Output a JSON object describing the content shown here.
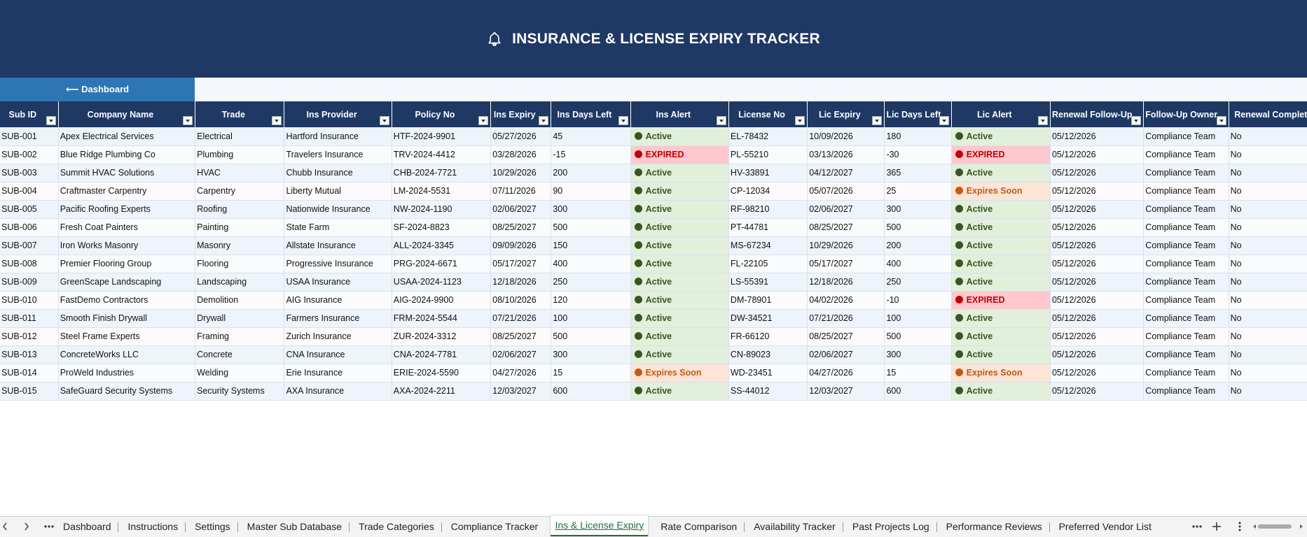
{
  "header": {
    "title": "INSURANCE & LICENSE EXPIRY TRACKER",
    "button": "⟵ Dashboard"
  },
  "table": {
    "columns": [
      "Sub ID",
      "Company Name",
      "Trade",
      "Ins Provider",
      "Policy No",
      "Ins Expiry",
      "Ins Days Left",
      "Ins Alert",
      "License No",
      "Lic Expiry",
      "Lic Days Left",
      "Lic Alert",
      "Renewal Follow-Up",
      "Follow-Up Owner",
      "Renewal Complete"
    ],
    "rows": [
      [
        "SUB-001",
        "Apex Electrical Services",
        "Electrical",
        "Hartford Insurance",
        "HTF-2024-9901",
        "05/27/2026",
        45,
        {
          "text": "Active",
          "color": "#375623",
          "fill": "#e2efda"
        },
        "EL-78432",
        "10/09/2026",
        180,
        {
          "text": "Active",
          "color": "#375623",
          "fill": "#e2efda"
        },
        "05/12/2026",
        "Compliance Team",
        "No"
      ],
      [
        "SUB-002",
        "Blue Ridge Plumbing Co",
        "Plumbing",
        "Travelers Insurance",
        "TRV-2024-4412",
        "03/28/2026",
        -15,
        {
          "text": "EXPIRED",
          "color": "#c00000",
          "fill": "#ffc7ce"
        },
        "PL-55210",
        "03/13/2026",
        -30,
        {
          "text": "EXPIRED",
          "color": "#c00000",
          "fill": "#ffc7ce"
        },
        "05/12/2026",
        "Compliance Team",
        "No"
      ],
      [
        "SUB-003",
        "Summit HVAC Solutions",
        "HVAC",
        "Chubb Insurance",
        "CHB-2024-7721",
        "10/29/2026",
        200,
        {
          "text": "Active",
          "color": "#375623",
          "fill": "#e2efda"
        },
        "HV-33891",
        "04/12/2027",
        365,
        {
          "text": "Active",
          "color": "#375623",
          "fill": "#e2efda"
        },
        "05/12/2026",
        "Compliance Team",
        "No"
      ],
      [
        "SUB-004",
        "Craftmaster Carpentry",
        "Carpentry",
        "Liberty Mutual",
        "LM-2024-5531",
        "07/11/2026",
        90,
        {
          "text": "Active",
          "color": "#375623",
          "fill": "#e2efda"
        },
        "CP-12034",
        "05/07/2026",
        25,
        {
          "text": "Expires Soon",
          "color": "#c65911",
          "fill": "#fce4d6"
        },
        "05/12/2026",
        "Compliance Team",
        "No"
      ],
      [
        "SUB-005",
        "Pacific Roofing Experts",
        "Roofing",
        "Nationwide Insurance",
        "NW-2024-1190",
        "02/06/2027",
        300,
        {
          "text": "Active",
          "color": "#375623",
          "fill": "#e2efda"
        },
        "RF-98210",
        "02/06/2027",
        300,
        {
          "text": "Active",
          "color": "#375623",
          "fill": "#e2efda"
        },
        "05/12/2026",
        "Compliance Team",
        "No"
      ],
      [
        "SUB-006",
        "Fresh Coat Painters",
        "Painting",
        "State Farm",
        "SF-2024-8823",
        "08/25/2027",
        500,
        {
          "text": "Active",
          "color": "#375623",
          "fill": "#e2efda"
        },
        "PT-44781",
        "08/25/2027",
        500,
        {
          "text": "Active",
          "color": "#375623",
          "fill": "#e2efda"
        },
        "05/12/2026",
        "Compliance Team",
        "No"
      ],
      [
        "SUB-007",
        "Iron Works Masonry",
        "Masonry",
        "Allstate Insurance",
        "ALL-2024-3345",
        "09/09/2026",
        150,
        {
          "text": "Active",
          "color": "#375623",
          "fill": "#e2efda"
        },
        "MS-67234",
        "10/29/2026",
        200,
        {
          "text": "Active",
          "color": "#375623",
          "fill": "#e2efda"
        },
        "05/12/2026",
        "Compliance Team",
        "No"
      ],
      [
        "SUB-008",
        "Premier Flooring Group",
        "Flooring",
        "Progressive Insurance",
        "PRG-2024-6671",
        "05/17/2027",
        400,
        {
          "text": "Active",
          "color": "#375623",
          "fill": "#e2efda"
        },
        "FL-22105",
        "05/17/2027",
        400,
        {
          "text": "Active",
          "color": "#375623",
          "fill": "#e2efda"
        },
        "05/12/2026",
        "Compliance Team",
        "No"
      ],
      [
        "SUB-009",
        "GreenScape Landscaping",
        "Landscaping",
        "USAA Insurance",
        "USAA-2024-1123",
        "12/18/2026",
        250,
        {
          "text": "Active",
          "color": "#375623",
          "fill": "#e2efda"
        },
        "LS-55391",
        "12/18/2026",
        250,
        {
          "text": "Active",
          "color": "#375623",
          "fill": "#e2efda"
        },
        "05/12/2026",
        "Compliance Team",
        "No"
      ],
      [
        "SUB-010",
        "FastDemo Contractors",
        "Demolition",
        "AIG Insurance",
        "AIG-2024-9900",
        "08/10/2026",
        120,
        {
          "text": "Active",
          "color": "#375623",
          "fill": "#e2efda"
        },
        "DM-78901",
        "04/02/2026",
        -10,
        {
          "text": "EXPIRED",
          "color": "#c00000",
          "fill": "#ffc7ce"
        },
        "05/12/2026",
        "Compliance Team",
        "No"
      ],
      [
        "SUB-011",
        "Smooth Finish Drywall",
        "Drywall",
        "Farmers Insurance",
        "FRM-2024-5544",
        "07/21/2026",
        100,
        {
          "text": "Active",
          "color": "#375623",
          "fill": "#e2efda"
        },
        "DW-34521",
        "07/21/2026",
        100,
        {
          "text": "Active",
          "color": "#375623",
          "fill": "#e2efda"
        },
        "05/12/2026",
        "Compliance Team",
        "No"
      ],
      [
        "SUB-012",
        "Steel Frame Experts",
        "Framing",
        "Zurich Insurance",
        "ZUR-2024-3312",
        "08/25/2027",
        500,
        {
          "text": "Active",
          "color": "#375623",
          "fill": "#e2efda"
        },
        "FR-66120",
        "08/25/2027",
        500,
        {
          "text": "Active",
          "color": "#375623",
          "fill": "#e2efda"
        },
        "05/12/2026",
        "Compliance Team",
        "No"
      ],
      [
        "SUB-013",
        "ConcreteWorks LLC",
        "Concrete",
        "CNA Insurance",
        "CNA-2024-7781",
        "02/06/2027",
        300,
        {
          "text": "Active",
          "color": "#375623",
          "fill": "#e2efda"
        },
        "CN-89023",
        "02/06/2027",
        300,
        {
          "text": "Active",
          "color": "#375623",
          "fill": "#e2efda"
        },
        "05/12/2026",
        "Compliance Team",
        "No"
      ],
      [
        "SUB-014",
        "ProWeld Industries",
        "Welding",
        "Erie Insurance",
        "ERIE-2024-5590",
        "04/27/2026",
        15,
        {
          "text": "Expires Soon",
          "color": "#c65911",
          "fill": "#fce4d6"
        },
        "WD-23451",
        "04/27/2026",
        15,
        {
          "text": "Expires Soon",
          "color": "#c65911",
          "fill": "#fce4d6"
        },
        "05/12/2026",
        "Compliance Team",
        "No"
      ],
      [
        "SUB-015",
        "SafeGuard Security Systems",
        "Security Systems",
        "AXA Insurance",
        "AXA-2024-2211",
        "12/03/2027",
        600,
        {
          "text": "Active",
          "color": "#375623",
          "fill": "#e2efda"
        },
        "SS-44012",
        "12/03/2027",
        600,
        {
          "text": "Active",
          "color": "#375623",
          "fill": "#e2efda"
        },
        "05/12/2026",
        "Compliance Team",
        "No"
      ]
    ]
  },
  "tabs": {
    "items": [
      "Dashboard",
      "Instructions",
      "Settings",
      "Master Sub Database",
      "Trade Categories",
      "Compliance Tracker",
      "Ins & License Expiry",
      "Rate Comparison",
      "Availability Tracker",
      "Past Projects Log",
      "Performance Reviews",
      "Preferred Vendor List"
    ],
    "active": 6
  }
}
